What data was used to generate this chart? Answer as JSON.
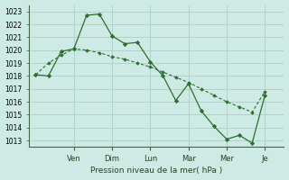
{
  "background_color": "#ceeae4",
  "grid_color": "#aacec8",
  "line_color": "#2d6e2d",
  "marker_color": "#2d6e2d",
  "xlabel": "Pression niveau de la mer( hPa )",
  "ylim": [
    1012.5,
    1023.5
  ],
  "yticks": [
    1013,
    1014,
    1015,
    1016,
    1017,
    1018,
    1019,
    1020,
    1021,
    1022,
    1023
  ],
  "x_day_labels": [
    "Ven",
    "Dim",
    "Lun",
    "Mar",
    "Mer",
    "Je"
  ],
  "x_day_positions": [
    3.0,
    6.0,
    9.0,
    12.0,
    15.0,
    18.0
  ],
  "xlim": [
    -0.5,
    19.5
  ],
  "series1_x": [
    0,
    1,
    2,
    3,
    4,
    5,
    6,
    7,
    8,
    9,
    10,
    11,
    12,
    13,
    14,
    15,
    16,
    17,
    18
  ],
  "series1_y": [
    1018.1,
    1018.0,
    1019.9,
    1020.1,
    1022.7,
    1022.8,
    1021.1,
    1020.5,
    1020.6,
    1019.1,
    1018.0,
    1016.1,
    1017.4,
    1015.3,
    1014.1,
    1013.1,
    1013.4,
    1012.8,
    1016.5
  ],
  "series2_x": [
    0,
    1,
    2,
    3,
    4,
    5,
    6,
    7,
    8,
    9,
    10,
    11,
    12,
    13,
    14,
    15,
    16,
    17,
    18
  ],
  "series2_y": [
    1018.1,
    1019.0,
    1019.6,
    1020.1,
    1020.0,
    1019.8,
    1019.5,
    1019.3,
    1019.0,
    1018.7,
    1018.3,
    1017.9,
    1017.5,
    1017.0,
    1016.5,
    1016.0,
    1015.6,
    1015.2,
    1016.8
  ]
}
